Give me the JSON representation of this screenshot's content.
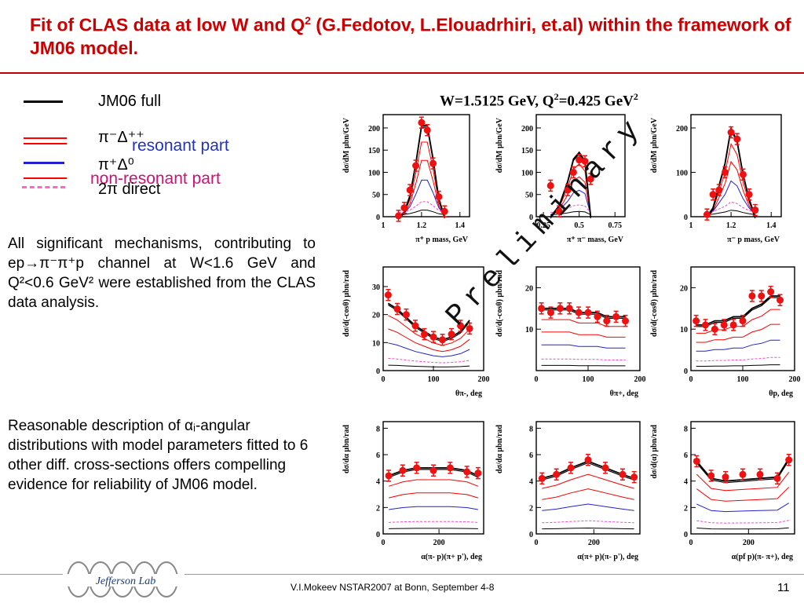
{
  "slide": {
    "title_part1": "Fit of CLAS data at low W and Q",
    "title_sup": "2",
    "title_part2": " (G.Fedotov, L.Elouadrhiri, et.al) within the framework of JM06 model.",
    "footer": "V.I.Mokeev   NSTAR2007 at Bonn, September  4-8",
    "page_number": "11",
    "logo_text": "Jefferson Lab"
  },
  "legend": {
    "full": "JM06 full",
    "pi_delta_pp": "π⁻Δ⁺⁺",
    "resonant": "resonant part",
    "pi_delta_0": "π⁺Δ⁰",
    "non_resonant": "non-resonant part",
    "two_pi_direct": "2π direct"
  },
  "text": {
    "paragraph1": "All significant mechanisms, contributing to ep→π⁻π⁺p channel at W<1.6 GeV and Q²<0.6 GeV² were established from the CLAS data analysis.",
    "paragraph2": "Reasonable description of αᵢ-angular distributions with model parameters fitted to 6 other diff. cross-sections offers compelling evidence for reliability of JM06 model."
  },
  "plots_title": {
    "main": "W=1.5125 GeV, Q",
    "sup1": "2",
    "mid": "=0.425 GeV",
    "sup2": "2"
  },
  "watermark": "Preliminary",
  "colors": {
    "title": "#cc0000",
    "full": "#000000",
    "resonant": "#ff0000",
    "pi_delta_0": "#2222cc",
    "direct": "#ff44cc",
    "data": "#ee1111"
  },
  "chart_data": [
    {
      "type": "line",
      "ylabel": "dσ/dM μbn/GeV",
      "xlabel": "π⁺ p mass, GeV",
      "xlim": [
        1.0,
        1.45
      ],
      "ylim": [
        0,
        230
      ],
      "xticks": [
        "1",
        "1.2",
        "1.4"
      ],
      "yticks": [
        "0",
        "50",
        "100",
        "150",
        "200"
      ],
      "x": [
        1.08,
        1.11,
        1.14,
        1.17,
        1.2,
        1.23,
        1.26,
        1.29,
        1.32
      ],
      "data": [
        2,
        20,
        60,
        115,
        212,
        195,
        120,
        45,
        12
      ],
      "full": [
        0,
        10,
        48,
        120,
        205,
        205,
        130,
        40,
        0
      ]
    },
    {
      "type": "line",
      "ylabel": "dσ/dM μbn/GeV",
      "xlabel": "π⁺ π⁻ mass, GeV",
      "xlim": [
        0.2,
        0.82
      ],
      "ylim": [
        0,
        230
      ],
      "xticks": [
        "0.25",
        "0.5",
        "0.75"
      ],
      "yticks": [
        "0",
        "50",
        "100",
        "150",
        "200"
      ],
      "x": [
        0.3,
        0.36,
        0.42,
        0.46,
        0.5,
        0.54,
        0.58
      ],
      "data": [
        70,
        12,
        60,
        100,
        128,
        125,
        85
      ],
      "full": [
        0,
        25,
        80,
        130,
        145,
        125,
        0
      ]
    },
    {
      "type": "line",
      "ylabel": "dσ/dM μbn/GeV",
      "xlabel": "π⁻ p mass, GeV",
      "xlim": [
        1.0,
        1.45
      ],
      "ylim": [
        0,
        230
      ],
      "xticks": [
        "1",
        "1.2",
        "1.4"
      ],
      "yticks": [
        "0",
        "100",
        "200"
      ],
      "x": [
        1.08,
        1.11,
        1.14,
        1.17,
        1.2,
        1.23,
        1.26,
        1.29,
        1.32
      ],
      "data": [
        5,
        50,
        60,
        100,
        190,
        175,
        95,
        50,
        15
      ],
      "full": [
        0,
        20,
        70,
        120,
        200,
        170,
        95,
        40,
        0
      ]
    },
    {
      "type": "line",
      "ylabel": "dσ/d(-cosθ) μbn/rad",
      "xlabel": "θπ-, deg",
      "xlim": [
        0,
        200
      ],
      "ylim": [
        0,
        37
      ],
      "xticks": [
        "0",
        "100",
        "200"
      ],
      "yticks": [
        "0",
        "10",
        "20",
        "30"
      ],
      "x": [
        10,
        28,
        46,
        64,
        82,
        100,
        118,
        136,
        154,
        172
      ],
      "data": [
        27,
        22,
        20,
        16,
        13,
        12,
        11,
        13,
        16,
        15
      ],
      "full": [
        24,
        22,
        19,
        16,
        14,
        12,
        11,
        12,
        14,
        18
      ]
    },
    {
      "type": "line",
      "ylabel": "dσ/d(-cosθ) μbn/rad",
      "xlabel": "θπ+, deg",
      "xlim": [
        0,
        200
      ],
      "ylim": [
        0,
        25
      ],
      "xticks": [
        "0",
        "100",
        "200"
      ],
      "yticks": [
        "10",
        "20"
      ],
      "x": [
        10,
        28,
        46,
        64,
        82,
        100,
        118,
        136,
        154,
        172
      ],
      "data": [
        15,
        14,
        15,
        15,
        14,
        14,
        13,
        12,
        13,
        12
      ],
      "full": [
        15,
        15,
        15,
        15,
        14,
        14,
        14,
        13,
        13,
        13
      ]
    },
    {
      "type": "line",
      "ylabel": "dσ/d(-cosθ) μbn/rad",
      "xlabel": "θp, deg",
      "xlim": [
        0,
        200
      ],
      "ylim": [
        0,
        25
      ],
      "xticks": [
        "0",
        "100",
        "200"
      ],
      "yticks": [
        "0",
        "10",
        "20"
      ],
      "x": [
        10,
        28,
        46,
        64,
        82,
        100,
        118,
        136,
        154,
        172
      ],
      "data": [
        12,
        11,
        10,
        11,
        11,
        12,
        18,
        18,
        19,
        17
      ],
      "full": [
        11,
        11,
        12,
        12,
        13,
        13,
        15,
        16,
        18,
        18
      ]
    },
    {
      "type": "line",
      "ylabel": "dσ/dα μbn/rad",
      "xlabel": "α(π- p)(π+ p'), deg",
      "xlim": [
        0,
        360
      ],
      "ylim": [
        0,
        8.5
      ],
      "xticks": [
        "0",
        "200"
      ],
      "yticks": [
        "0",
        "2",
        "4",
        "6",
        "8"
      ],
      "x": [
        20,
        70,
        120,
        180,
        240,
        300,
        340
      ],
      "data": [
        4.4,
        4.8,
        5.0,
        4.8,
        5.0,
        4.7,
        4.6
      ],
      "full": [
        4.4,
        4.8,
        5.0,
        5.0,
        5.0,
        4.8,
        4.4
      ]
    },
    {
      "type": "line",
      "ylabel": "dσ/dα μbn/rad",
      "xlabel": "α(π+ p)(π- p'), deg",
      "xlim": [
        0,
        360
      ],
      "ylim": [
        0,
        8.5
      ],
      "xticks": [
        "0",
        "200"
      ],
      "yticks": [
        "0",
        "2",
        "4",
        "6",
        "8"
      ],
      "x": [
        20,
        70,
        120,
        180,
        240,
        300,
        340
      ],
      "data": [
        4.2,
        4.5,
        5.0,
        5.6,
        5.0,
        4.5,
        4.3
      ],
      "full": [
        4.2,
        4.5,
        5.0,
        5.5,
        5.0,
        4.5,
        4.2
      ]
    },
    {
      "type": "line",
      "ylabel": "dσ/d(α) μbn/rad",
      "xlabel": "α(pf p)(π- π+), deg",
      "xlim": [
        0,
        360
      ],
      "ylim": [
        0,
        8.5
      ],
      "xticks": [
        "0",
        "200"
      ],
      "yticks": [
        "0",
        "2",
        "4",
        "6",
        "8"
      ],
      "x": [
        20,
        70,
        120,
        180,
        240,
        300,
        340
      ],
      "data": [
        5.5,
        4.4,
        4.3,
        4.5,
        4.5,
        4.2,
        5.6
      ],
      "full": [
        5.5,
        4.2,
        4.0,
        4.1,
        4.2,
        4.3,
        5.7
      ]
    }
  ]
}
